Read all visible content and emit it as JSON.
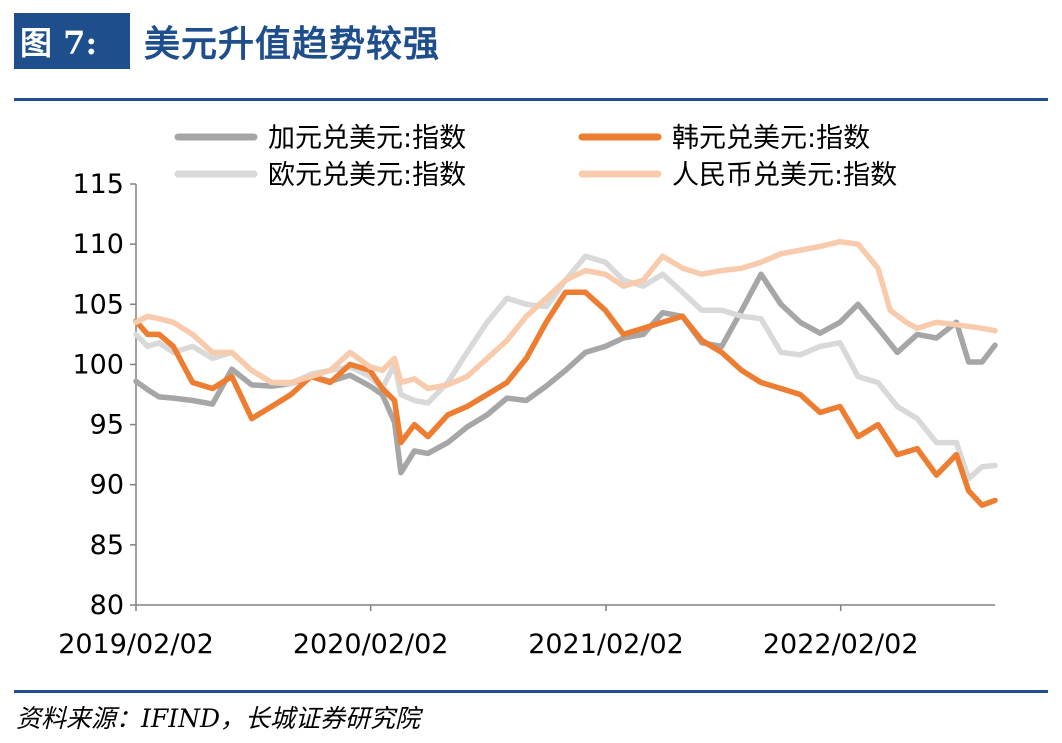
{
  "header": {
    "figure_label": "图 7:",
    "title": "美元升值趋势较强"
  },
  "source": "资料来源：IFIND，长城证券研究院",
  "chart_data": {
    "type": "line",
    "title": "美元升值趋势较强",
    "xlabel": "",
    "ylabel": "",
    "ylim": [
      80,
      115
    ],
    "yticks": [
      115,
      110,
      105,
      100,
      95,
      90,
      85,
      80
    ],
    "xlim": [
      "2019/02/02",
      "2022/09/30"
    ],
    "xticks": [
      "2019/02/02",
      "2020/02/02",
      "2021/02/02",
      "2022/02/02"
    ],
    "legend_position": "top",
    "series": [
      {
        "name": "加元兑美元:指数",
        "color": "#a6a6a6",
        "points": [
          [
            "2019/02/02",
            98.6
          ],
          [
            "2019/02/20",
            97.9
          ],
          [
            "2019/03/10",
            97.3
          ],
          [
            "2019/04/01",
            97.2
          ],
          [
            "2019/05/01",
            97.0
          ],
          [
            "2019/06/01",
            96.7
          ],
          [
            "2019/07/01",
            99.6
          ],
          [
            "2019/08/01",
            98.3
          ],
          [
            "2019/09/01",
            98.2
          ],
          [
            "2019/10/01",
            98.4
          ],
          [
            "2019/11/01",
            99.0
          ],
          [
            "2019/12/01",
            98.6
          ],
          [
            "2020/01/01",
            99.1
          ],
          [
            "2020/02/01",
            98.2
          ],
          [
            "2020/02/20",
            97.5
          ],
          [
            "2020/03/10",
            95.2
          ],
          [
            "2020/03/20",
            91.0
          ],
          [
            "2020/04/10",
            92.8
          ],
          [
            "2020/05/01",
            92.6
          ],
          [
            "2020/06/01",
            93.5
          ],
          [
            "2020/07/01",
            94.8
          ],
          [
            "2020/08/01",
            95.8
          ],
          [
            "2020/09/01",
            97.2
          ],
          [
            "2020/10/01",
            97.0
          ],
          [
            "2020/11/01",
            98.2
          ],
          [
            "2020/12/01",
            99.5
          ],
          [
            "2021/01/01",
            101.0
          ],
          [
            "2021/02/01",
            101.5
          ],
          [
            "2021/03/01",
            102.2
          ],
          [
            "2021/04/01",
            102.5
          ],
          [
            "2021/05/01",
            104.3
          ],
          [
            "2021/06/01",
            104.0
          ],
          [
            "2021/07/01",
            101.8
          ],
          [
            "2021/08/01",
            101.5
          ],
          [
            "2021/09/01",
            104.5
          ],
          [
            "2021/10/01",
            107.5
          ],
          [
            "2021/11/01",
            105.0
          ],
          [
            "2021/12/01",
            103.5
          ],
          [
            "2022/01/01",
            102.6
          ],
          [
            "2022/02/01",
            103.5
          ],
          [
            "2022/03/01",
            105.0
          ],
          [
            "2022/04/01",
            103.0
          ],
          [
            "2022/05/01",
            101.0
          ],
          [
            "2022/06/01",
            102.5
          ],
          [
            "2022/07/01",
            102.2
          ],
          [
            "2022/08/01",
            103.5
          ],
          [
            "2022/08/20",
            100.2
          ],
          [
            "2022/09/10",
            100.2
          ],
          [
            "2022/09/30",
            101.6
          ]
        ]
      },
      {
        "name": "欧元兑美元:指数",
        "color": "#d9d9d9",
        "points": [
          [
            "2019/02/02",
            102.5
          ],
          [
            "2019/02/20",
            101.5
          ],
          [
            "2019/03/10",
            101.8
          ],
          [
            "2019/04/01",
            101.0
          ],
          [
            "2019/05/01",
            101.5
          ],
          [
            "2019/06/01",
            100.5
          ],
          [
            "2019/07/01",
            101.0
          ],
          [
            "2019/08/01",
            99.5
          ],
          [
            "2019/09/01",
            98.5
          ],
          [
            "2019/10/01",
            98.4
          ],
          [
            "2019/11/01",
            99.2
          ],
          [
            "2019/12/01",
            99.5
          ],
          [
            "2020/01/01",
            99.8
          ],
          [
            "2020/02/01",
            99.0
          ],
          [
            "2020/02/20",
            98.0
          ],
          [
            "2020/03/10",
            100.0
          ],
          [
            "2020/03/20",
            97.5
          ],
          [
            "2020/04/10",
            97.0
          ],
          [
            "2020/05/01",
            96.8
          ],
          [
            "2020/06/01",
            98.5
          ],
          [
            "2020/07/01",
            101.0
          ],
          [
            "2020/08/01",
            103.5
          ],
          [
            "2020/09/01",
            105.5
          ],
          [
            "2020/10/01",
            105.0
          ],
          [
            "2020/11/01",
            104.8
          ],
          [
            "2020/12/01",
            107.0
          ],
          [
            "2021/01/01",
            109.0
          ],
          [
            "2021/02/01",
            108.5
          ],
          [
            "2021/03/01",
            107.0
          ],
          [
            "2021/04/01",
            106.5
          ],
          [
            "2021/05/01",
            107.5
          ],
          [
            "2021/06/01",
            106.0
          ],
          [
            "2021/07/01",
            104.5
          ],
          [
            "2021/08/01",
            104.5
          ],
          [
            "2021/09/01",
            104.0
          ],
          [
            "2021/10/01",
            103.8
          ],
          [
            "2021/11/01",
            101.0
          ],
          [
            "2021/12/01",
            100.8
          ],
          [
            "2022/01/01",
            101.5
          ],
          [
            "2022/02/01",
            101.8
          ],
          [
            "2022/03/01",
            99.0
          ],
          [
            "2022/04/01",
            98.5
          ],
          [
            "2022/05/01",
            96.5
          ],
          [
            "2022/06/01",
            95.5
          ],
          [
            "2022/07/01",
            93.5
          ],
          [
            "2022/08/01",
            93.5
          ],
          [
            "2022/08/20",
            90.5
          ],
          [
            "2022/09/10",
            91.5
          ],
          [
            "2022/09/30",
            91.6
          ]
        ]
      },
      {
        "name": "韩元兑美元:指数",
        "color": "#ed7d31",
        "points": [
          [
            "2019/02/02",
            103.6
          ],
          [
            "2019/02/20",
            102.5
          ],
          [
            "2019/03/10",
            102.5
          ],
          [
            "2019/04/01",
            101.5
          ],
          [
            "2019/05/01",
            98.5
          ],
          [
            "2019/06/01",
            98.0
          ],
          [
            "2019/07/01",
            99.0
          ],
          [
            "2019/08/01",
            95.5
          ],
          [
            "2019/09/01",
            96.5
          ],
          [
            "2019/10/01",
            97.5
          ],
          [
            "2019/11/01",
            99.0
          ],
          [
            "2019/12/01",
            98.5
          ],
          [
            "2020/01/01",
            100.0
          ],
          [
            "2020/02/01",
            99.5
          ],
          [
            "2020/02/20",
            98.0
          ],
          [
            "2020/03/10",
            97.0
          ],
          [
            "2020/03/20",
            93.5
          ],
          [
            "2020/04/10",
            95.0
          ],
          [
            "2020/05/01",
            94.0
          ],
          [
            "2020/06/01",
            95.8
          ],
          [
            "2020/07/01",
            96.5
          ],
          [
            "2020/08/01",
            97.5
          ],
          [
            "2020/09/01",
            98.5
          ],
          [
            "2020/10/01",
            100.5
          ],
          [
            "2020/11/01",
            103.5
          ],
          [
            "2020/12/01",
            106.0
          ],
          [
            "2021/01/01",
            106.0
          ],
          [
            "2021/02/01",
            104.5
          ],
          [
            "2021/03/01",
            102.5
          ],
          [
            "2021/04/01",
            103.0
          ],
          [
            "2021/05/01",
            103.5
          ],
          [
            "2021/06/01",
            104.0
          ],
          [
            "2021/07/01",
            102.0
          ],
          [
            "2021/08/01",
            101.0
          ],
          [
            "2021/09/01",
            99.5
          ],
          [
            "2021/10/01",
            98.5
          ],
          [
            "2021/11/01",
            98.0
          ],
          [
            "2021/12/01",
            97.5
          ],
          [
            "2022/01/01",
            96.0
          ],
          [
            "2022/02/01",
            96.5
          ],
          [
            "2022/03/01",
            94.0
          ],
          [
            "2022/04/01",
            95.0
          ],
          [
            "2022/05/01",
            92.5
          ],
          [
            "2022/06/01",
            93.0
          ],
          [
            "2022/07/01",
            90.8
          ],
          [
            "2022/08/01",
            92.5
          ],
          [
            "2022/08/20",
            89.5
          ],
          [
            "2022/09/10",
            88.3
          ],
          [
            "2022/09/30",
            88.7
          ]
        ]
      },
      {
        "name": "人民币兑美元:指数",
        "color": "#f8cbad",
        "points": [
          [
            "2019/02/02",
            103.5
          ],
          [
            "2019/02/20",
            104.0
          ],
          [
            "2019/03/10",
            103.8
          ],
          [
            "2019/04/01",
            103.5
          ],
          [
            "2019/05/01",
            102.5
          ],
          [
            "2019/06/01",
            101.0
          ],
          [
            "2019/07/01",
            101.0
          ],
          [
            "2019/08/01",
            99.5
          ],
          [
            "2019/09/01",
            98.5
          ],
          [
            "2019/10/01",
            98.5
          ],
          [
            "2019/11/01",
            99.0
          ],
          [
            "2019/12/01",
            99.5
          ],
          [
            "2020/01/01",
            101.0
          ],
          [
            "2020/02/01",
            99.8
          ],
          [
            "2020/02/20",
            99.5
          ],
          [
            "2020/03/10",
            100.5
          ],
          [
            "2020/03/20",
            98.5
          ],
          [
            "2020/04/10",
            98.8
          ],
          [
            "2020/05/01",
            98.0
          ],
          [
            "2020/06/01",
            98.3
          ],
          [
            "2020/07/01",
            99.0
          ],
          [
            "2020/08/01",
            100.5
          ],
          [
            "2020/09/01",
            102.0
          ],
          [
            "2020/10/01",
            104.0
          ],
          [
            "2020/11/01",
            105.5
          ],
          [
            "2020/12/01",
            107.0
          ],
          [
            "2021/01/01",
            107.8
          ],
          [
            "2021/02/01",
            107.5
          ],
          [
            "2021/03/01",
            106.5
          ],
          [
            "2021/04/01",
            107.0
          ],
          [
            "2021/05/01",
            109.0
          ],
          [
            "2021/06/01",
            108.0
          ],
          [
            "2021/07/01",
            107.5
          ],
          [
            "2021/08/01",
            107.8
          ],
          [
            "2021/09/01",
            108.0
          ],
          [
            "2021/10/01",
            108.5
          ],
          [
            "2021/11/01",
            109.2
          ],
          [
            "2021/12/01",
            109.5
          ],
          [
            "2022/01/01",
            109.8
          ],
          [
            "2022/02/01",
            110.2
          ],
          [
            "2022/03/01",
            110.0
          ],
          [
            "2022/04/01",
            108.0
          ],
          [
            "2022/04/20",
            104.5
          ],
          [
            "2022/05/15",
            103.5
          ],
          [
            "2022/06/01",
            103.0
          ],
          [
            "2022/07/01",
            103.5
          ],
          [
            "2022/08/01",
            103.3
          ],
          [
            "2022/09/10",
            103.0
          ],
          [
            "2022/09/30",
            102.8
          ]
        ]
      }
    ]
  }
}
